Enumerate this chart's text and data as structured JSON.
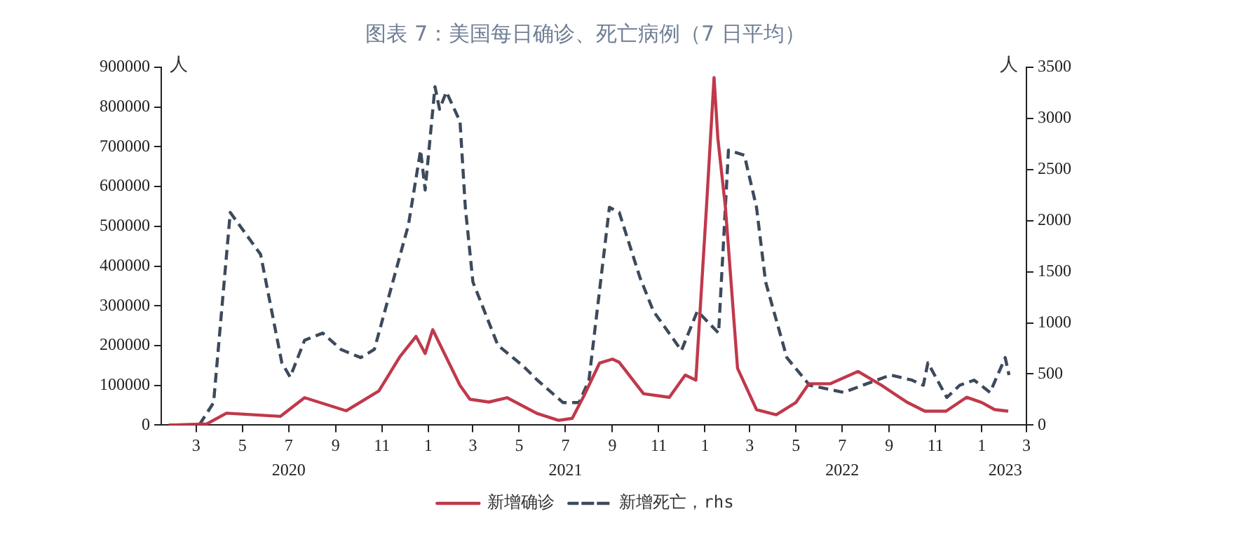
{
  "chart_data": {
    "type": "line",
    "title": "图表 7：美国每日确诊、死亡病例（7 日平均）",
    "ylabel": "人",
    "y2label": "人",
    "xlim": [
      "2020-01-15",
      "2023-03-01"
    ],
    "xticks": [
      {
        "value": "2020-03-01",
        "label": "3"
      },
      {
        "value": "2020-05-01",
        "label": "5"
      },
      {
        "value": "2020-07-01",
        "label": "7"
      },
      {
        "value": "2020-09-01",
        "label": "9"
      },
      {
        "value": "2020-11-01",
        "label": "11"
      },
      {
        "value": "2021-01-01",
        "label": "1"
      },
      {
        "value": "2021-03-01",
        "label": "3"
      },
      {
        "value": "2021-05-01",
        "label": "5"
      },
      {
        "value": "2021-07-01",
        "label": "7"
      },
      {
        "value": "2021-09-01",
        "label": "9"
      },
      {
        "value": "2021-11-01",
        "label": "11"
      },
      {
        "value": "2022-01-01",
        "label": "1"
      },
      {
        "value": "2022-03-01",
        "label": "3"
      },
      {
        "value": "2022-05-01",
        "label": "5"
      },
      {
        "value": "2022-07-01",
        "label": "7"
      },
      {
        "value": "2022-09-01",
        "label": "9"
      },
      {
        "value": "2022-11-01",
        "label": "11"
      },
      {
        "value": "2023-01-01",
        "label": "1"
      },
      {
        "value": "2023-03-01",
        "label": "3"
      }
    ],
    "x2lim": [
      "2020-01-15",
      "2023-03-01"
    ],
    "x2ticks": [
      {
        "value": "2020-07-01",
        "label": "2020"
      },
      {
        "value": "2021-07-01",
        "label": "2021"
      },
      {
        "value": "2022-07-01",
        "label": "2022"
      },
      {
        "value": "2023-02-01",
        "label": "2023"
      }
    ],
    "ylim": [
      0,
      900000
    ],
    "yticks": [
      0,
      100000,
      200000,
      300000,
      400000,
      500000,
      600000,
      700000,
      800000,
      900000
    ],
    "y2lim": [
      0,
      3500
    ],
    "y2ticks": [
      0,
      500,
      1000,
      1500,
      2000,
      2500,
      3000,
      3500
    ],
    "grid": false,
    "legend": "bottom",
    "marker": "none",
    "series": [
      {
        "name": "新增确诊",
        "color": "#c0394b",
        "line_style": "solid",
        "x": [
          "2020-01-25",
          "2020-03-15",
          "2020-04-10",
          "2020-06-20",
          "2020-07-22",
          "2020-09-15",
          "2020-10-28",
          "2020-11-25",
          "2020-12-16",
          "2020-12-28",
          "2021-01-07",
          "2021-02-12",
          "2021-02-25",
          "2021-03-22",
          "2021-04-15",
          "2021-05-25",
          "2021-06-22",
          "2021-07-10",
          "2021-07-25",
          "2021-08-15",
          "2021-09-01",
          "2021-09-10",
          "2021-10-12",
          "2021-11-15",
          "2021-12-06",
          "2021-12-20",
          "2022-01-03",
          "2022-01-13",
          "2022-01-18",
          "2022-01-28",
          "2022-02-13",
          "2022-03-10",
          "2022-04-05",
          "2022-05-01",
          "2022-05-18",
          "2022-06-15",
          "2022-07-22",
          "2022-08-22",
          "2022-09-25",
          "2022-10-18",
          "2022-11-15",
          "2022-12-12",
          "2023-01-01",
          "2023-01-18",
          "2023-02-05"
        ],
        "values": [
          0,
          3000,
          30000,
          22000,
          69000,
          36000,
          86000,
          173000,
          223000,
          180000,
          240000,
          100000,
          65000,
          58000,
          69000,
          29000,
          12000,
          17000,
          72000,
          156000,
          166000,
          158000,
          79000,
          70000,
          126000,
          113000,
          548000,
          874000,
          722000,
          548000,
          143000,
          39000,
          26000,
          57000,
          104000,
          104000,
          135000,
          100000,
          57000,
          35000,
          35000,
          70000,
          57000,
          39000,
          35000
        ]
      },
      {
        "name": "新增死亡，rhs",
        "color": "#3d4a5c",
        "line_style": "dashed",
        "axis": "y2",
        "x": [
          "2020-01-25",
          "2020-03-05",
          "2020-03-24",
          "2020-04-15",
          "2020-05-25",
          "2020-06-22",
          "2020-07-03",
          "2020-07-22",
          "2020-08-15",
          "2020-09-08",
          "2020-10-04",
          "2020-10-22",
          "2020-12-06",
          "2020-12-22",
          "2020-12-28",
          "2021-01-10",
          "2021-01-16",
          "2021-01-25",
          "2021-02-12",
          "2021-02-19",
          "2021-03-01",
          "2021-04-03",
          "2021-05-06",
          "2021-05-25",
          "2021-06-28",
          "2021-07-19",
          "2021-08-01",
          "2021-08-28",
          "2021-09-10",
          "2021-10-07",
          "2021-10-25",
          "2021-12-01",
          "2021-12-22",
          "2022-01-19",
          "2022-02-01",
          "2022-02-22",
          "2022-03-10",
          "2022-03-22",
          "2022-04-19",
          "2022-05-19",
          "2022-07-03",
          "2022-07-28",
          "2022-09-03",
          "2022-10-01",
          "2022-10-16",
          "2022-10-22",
          "2022-11-16",
          "2022-12-03",
          "2022-12-22",
          "2023-01-12",
          "2023-02-01",
          "2023-02-06"
        ],
        "values": [
          0,
          0,
          220,
          2080,
          1670,
          610,
          470,
          830,
          900,
          740,
          660,
          740,
          1960,
          2690,
          2300,
          3310,
          3090,
          3260,
          2970,
          2130,
          1400,
          780,
          580,
          440,
          220,
          220,
          440,
          2130,
          2080,
          1450,
          1115,
          730,
          1115,
          900,
          2690,
          2640,
          2130,
          1400,
          660,
          390,
          320,
          390,
          490,
          440,
          390,
          610,
          270,
          390,
          440,
          320,
          660,
          490
        ]
      }
    ]
  }
}
